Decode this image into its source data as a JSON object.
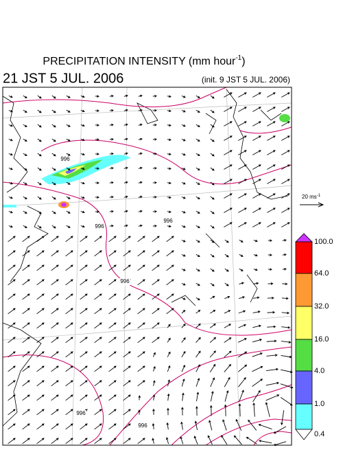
{
  "header": {
    "title": "PRECIPITATION INTENSITY (mm hour",
    "title_superscript": "-1",
    "title_end": ")",
    "valid_time": "21 JST 5 JUL. 2006",
    "init_time": "(init. 9 JST 5 JUL. 2006)"
  },
  "reference_vector": {
    "label": "20 ms",
    "superscript": "-1"
  },
  "colorbar": {
    "labels": [
      "100.0",
      "64.0",
      "32.0",
      "16.0",
      "4.0",
      "1.0",
      "0.4"
    ],
    "colors": [
      "#cc33ff",
      "#ff0000",
      "#ff9933",
      "#ffff66",
      "#55dd44",
      "#6666ff",
      "#66ffff",
      "#ffffff"
    ]
  },
  "contour_labels": [
    "996",
    "996",
    "996",
    "996",
    "996",
    "996"
  ]
}
